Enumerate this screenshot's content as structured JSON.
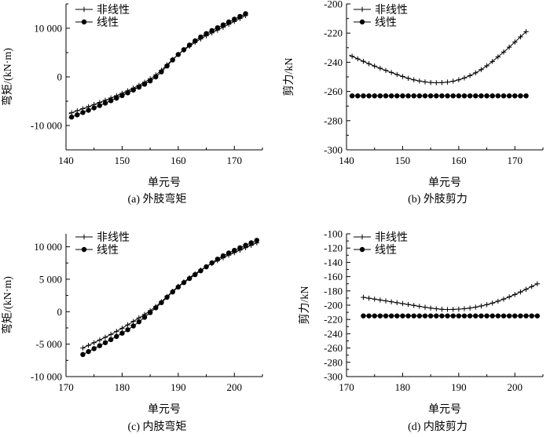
{
  "chart_data": [
    {
      "id": "a",
      "type": "line",
      "caption": "(a) 外肢弯矩",
      "xlabel": "单元号",
      "ylabel": "弯矩/(kN·m)",
      "xlim": [
        140,
        175
      ],
      "ylim": [
        -15000,
        15000
      ],
      "xticks": [
        140,
        150,
        160,
        170
      ],
      "xtick_labels": [
        "140",
        "150",
        "160",
        "170"
      ],
      "yticks": [
        -10000,
        0,
        10000
      ],
      "ytick_labels": [
        "-10 000",
        "0",
        "10 000"
      ],
      "legend": [
        "非线性",
        "线性"
      ],
      "series": [
        {
          "name": "非线性",
          "marker": "plus",
          "x": [
            140.5,
            147,
            152,
            156,
            160,
            164,
            168,
            172
          ],
          "values": [
            -7600,
            -4800,
            -2300,
            400,
            4600,
            7800,
            10200,
            12600
          ]
        },
        {
          "name": "线性",
          "marker": "dot",
          "x": [
            140.5,
            147,
            152,
            156,
            160,
            164,
            168,
            172
          ],
          "values": [
            -8500,
            -5400,
            -2700,
            0,
            4600,
            8200,
            10700,
            13000
          ]
        }
      ]
    },
    {
      "id": "b",
      "type": "line",
      "caption": "(b) 外肢剪力",
      "xlabel": "单元号",
      "ylabel": "剪力/kN",
      "xlim": [
        140,
        175
      ],
      "ylim": [
        -300,
        -200
      ],
      "xticks": [
        140,
        150,
        160,
        170
      ],
      "xtick_labels": [
        "140",
        "150",
        "160",
        "170"
      ],
      "yticks": [
        -300,
        -280,
        -260,
        -240,
        -220,
        -200
      ],
      "ytick_labels": [
        "-300",
        "-280",
        "-260",
        "-240",
        "-220",
        "-200"
      ],
      "legend": [
        "非线性",
        "线性"
      ],
      "series": [
        {
          "name": "非线性",
          "marker": "plus",
          "x": [
            140.5,
            144,
            148,
            152,
            156,
            160,
            164,
            168,
            172
          ],
          "values": [
            -235,
            -241,
            -247,
            -252,
            -254,
            -252,
            -245,
            -233,
            -219
          ]
        },
        {
          "name": "线性",
          "marker": "dot",
          "x": [
            140.5,
            172
          ],
          "values": [
            -263,
            -263
          ]
        }
      ]
    },
    {
      "id": "c",
      "type": "line",
      "caption": "(c) 内肢弯矩",
      "xlabel": "单元号",
      "ylabel": "弯矩/(kN·m)",
      "xlim": [
        170,
        205
      ],
      "ylim": [
        -10000,
        12000
      ],
      "xticks": [
        170,
        180,
        190,
        200
      ],
      "xtick_labels": [
        "170",
        "180",
        "190",
        "200"
      ],
      "yticks": [
        -10000,
        -5000,
        0,
        5000,
        10000
      ],
      "ytick_labels": [
        "-10 000",
        "-5 000",
        "0",
        "5 000",
        "10 000"
      ],
      "legend": [
        "非线性",
        "线性"
      ],
      "series": [
        {
          "name": "非线性",
          "marker": "plus",
          "x": [
            173,
            178,
            182,
            186,
            190,
            194,
            198,
            204
          ],
          "values": [
            -5600,
            -3500,
            -1500,
            800,
            3900,
            6400,
            8300,
            10600
          ]
        },
        {
          "name": "线性",
          "marker": "dot",
          "x": [
            173,
            178,
            182,
            186,
            190,
            194,
            198,
            204
          ],
          "values": [
            -6600,
            -4300,
            -2200,
            600,
            3800,
            6300,
            8600,
            11000
          ]
        }
      ]
    },
    {
      "id": "d",
      "type": "line",
      "caption": "(d) 内肢剪力",
      "xlabel": "单元号",
      "ylabel": "剪力/kN",
      "xlim": [
        170,
        205
      ],
      "ylim": [
        -300,
        -100
      ],
      "xticks": [
        170,
        180,
        190,
        200
      ],
      "xtick_labels": [
        "170",
        "180",
        "190",
        "200"
      ],
      "yticks": [
        -300,
        -280,
        -260,
        -240,
        -220,
        -200,
        -180,
        -160,
        -140,
        -120,
        -100
      ],
      "ytick_labels": [
        "-300",
        "-280",
        "-260",
        "-240",
        "-220",
        "-200",
        "-180",
        "-160",
        "-140",
        "-120",
        "-100"
      ],
      "legend": [
        "非线性",
        "线性"
      ],
      "series": [
        {
          "name": "非线性",
          "marker": "plus",
          "x": [
            173,
            177,
            181,
            185,
            188,
            192,
            196,
            200,
            204
          ],
          "values": [
            -189,
            -194,
            -199,
            -204,
            -206,
            -204,
            -197,
            -185,
            -170
          ]
        },
        {
          "name": "线性",
          "marker": "dot",
          "x": [
            173,
            204
          ],
          "values": [
            -215,
            -215
          ]
        }
      ]
    }
  ]
}
